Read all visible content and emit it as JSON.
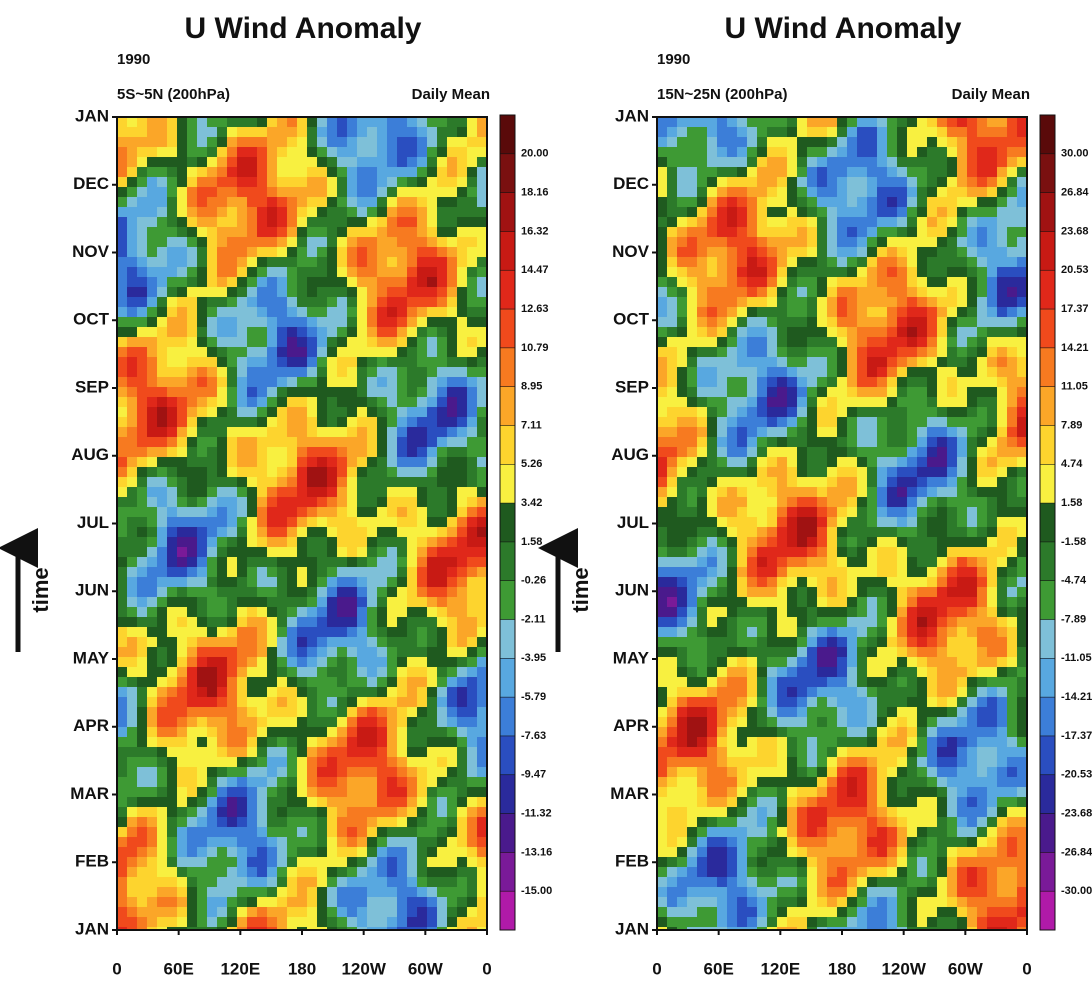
{
  "chart_data": [
    {
      "type": "heatmap",
      "title": "U Wind Anomaly",
      "year": "1990",
      "region": "5S~5N (200hPa)",
      "note": "Daily Mean",
      "y_label": "time",
      "y_categories": [
        "JAN",
        "FEB",
        "MAR",
        "APR",
        "MAY",
        "JUN",
        "JUL",
        "AUG",
        "SEP",
        "OCT",
        "NOV",
        "DEC",
        "JAN"
      ],
      "x_categories": [
        "0",
        "60E",
        "120E",
        "180",
        "120W",
        "60W",
        "0"
      ],
      "colorbar_ticks": [
        {
          "value": 20,
          "label": "20.00"
        },
        18.16,
        16.32,
        14.47,
        12.63,
        10.79,
        8.95,
        7.11,
        5.26,
        3.42,
        1.58,
        -0.26,
        -2.11,
        -3.95,
        -5.79,
        -7.63,
        -9.47,
        -11.32,
        -13.16,
        {
          "value": -15,
          "label": "-15.00"
        }
      ],
      "colors": [
        "#5a0a0a",
        "#7a1010",
        "#a01212",
        "#c81a14",
        "#e0281a",
        "#f04a1c",
        "#f77a20",
        "#fba628",
        "#fdd42e",
        "#f8f040",
        "#1f5a1f",
        "#2c7a2a",
        "#3e9a34",
        "#7ec0d8",
        "#58a8e0",
        "#3c7ed8",
        "#2a4ec0",
        "#2a2a9c",
        "#4a1a8c",
        "#7a1a98",
        "#b01aa8"
      ]
    },
    {
      "type": "heatmap",
      "title": "U Wind Anomaly",
      "year": "1990",
      "region": "15N~25N (200hPa)",
      "note": "Daily Mean",
      "y_label": "time",
      "y_categories": [
        "JAN",
        "FEB",
        "MAR",
        "APR",
        "MAY",
        "JUN",
        "JUL",
        "AUG",
        "SEP",
        "OCT",
        "NOV",
        "DEC",
        "JAN"
      ],
      "x_categories": [
        "0",
        "60E",
        "120E",
        "180",
        "120W",
        "60W",
        "0"
      ],
      "colorbar_ticks": [
        {
          "value": 30,
          "label": "30.00"
        },
        26.84,
        23.68,
        20.53,
        17.37,
        14.21,
        11.05,
        7.89,
        4.74,
        1.58,
        -1.58,
        -4.74,
        -7.89,
        -11.05,
        -14.21,
        -17.37,
        -20.53,
        -23.68,
        -26.84,
        {
          "value": -30,
          "label": "-30.00"
        }
      ],
      "colors": [
        "#5a0a0a",
        "#7a1010",
        "#a01212",
        "#c81a14",
        "#e0281a",
        "#f04a1c",
        "#f77a20",
        "#fba628",
        "#fdd42e",
        "#f8f040",
        "#1f5a1f",
        "#2c7a2a",
        "#3e9a34",
        "#7ec0d8",
        "#58a8e0",
        "#3c7ed8",
        "#2a4ec0",
        "#2a2a9c",
        "#4a1a8c",
        "#7a1a98",
        "#b01aa8"
      ]
    }
  ]
}
